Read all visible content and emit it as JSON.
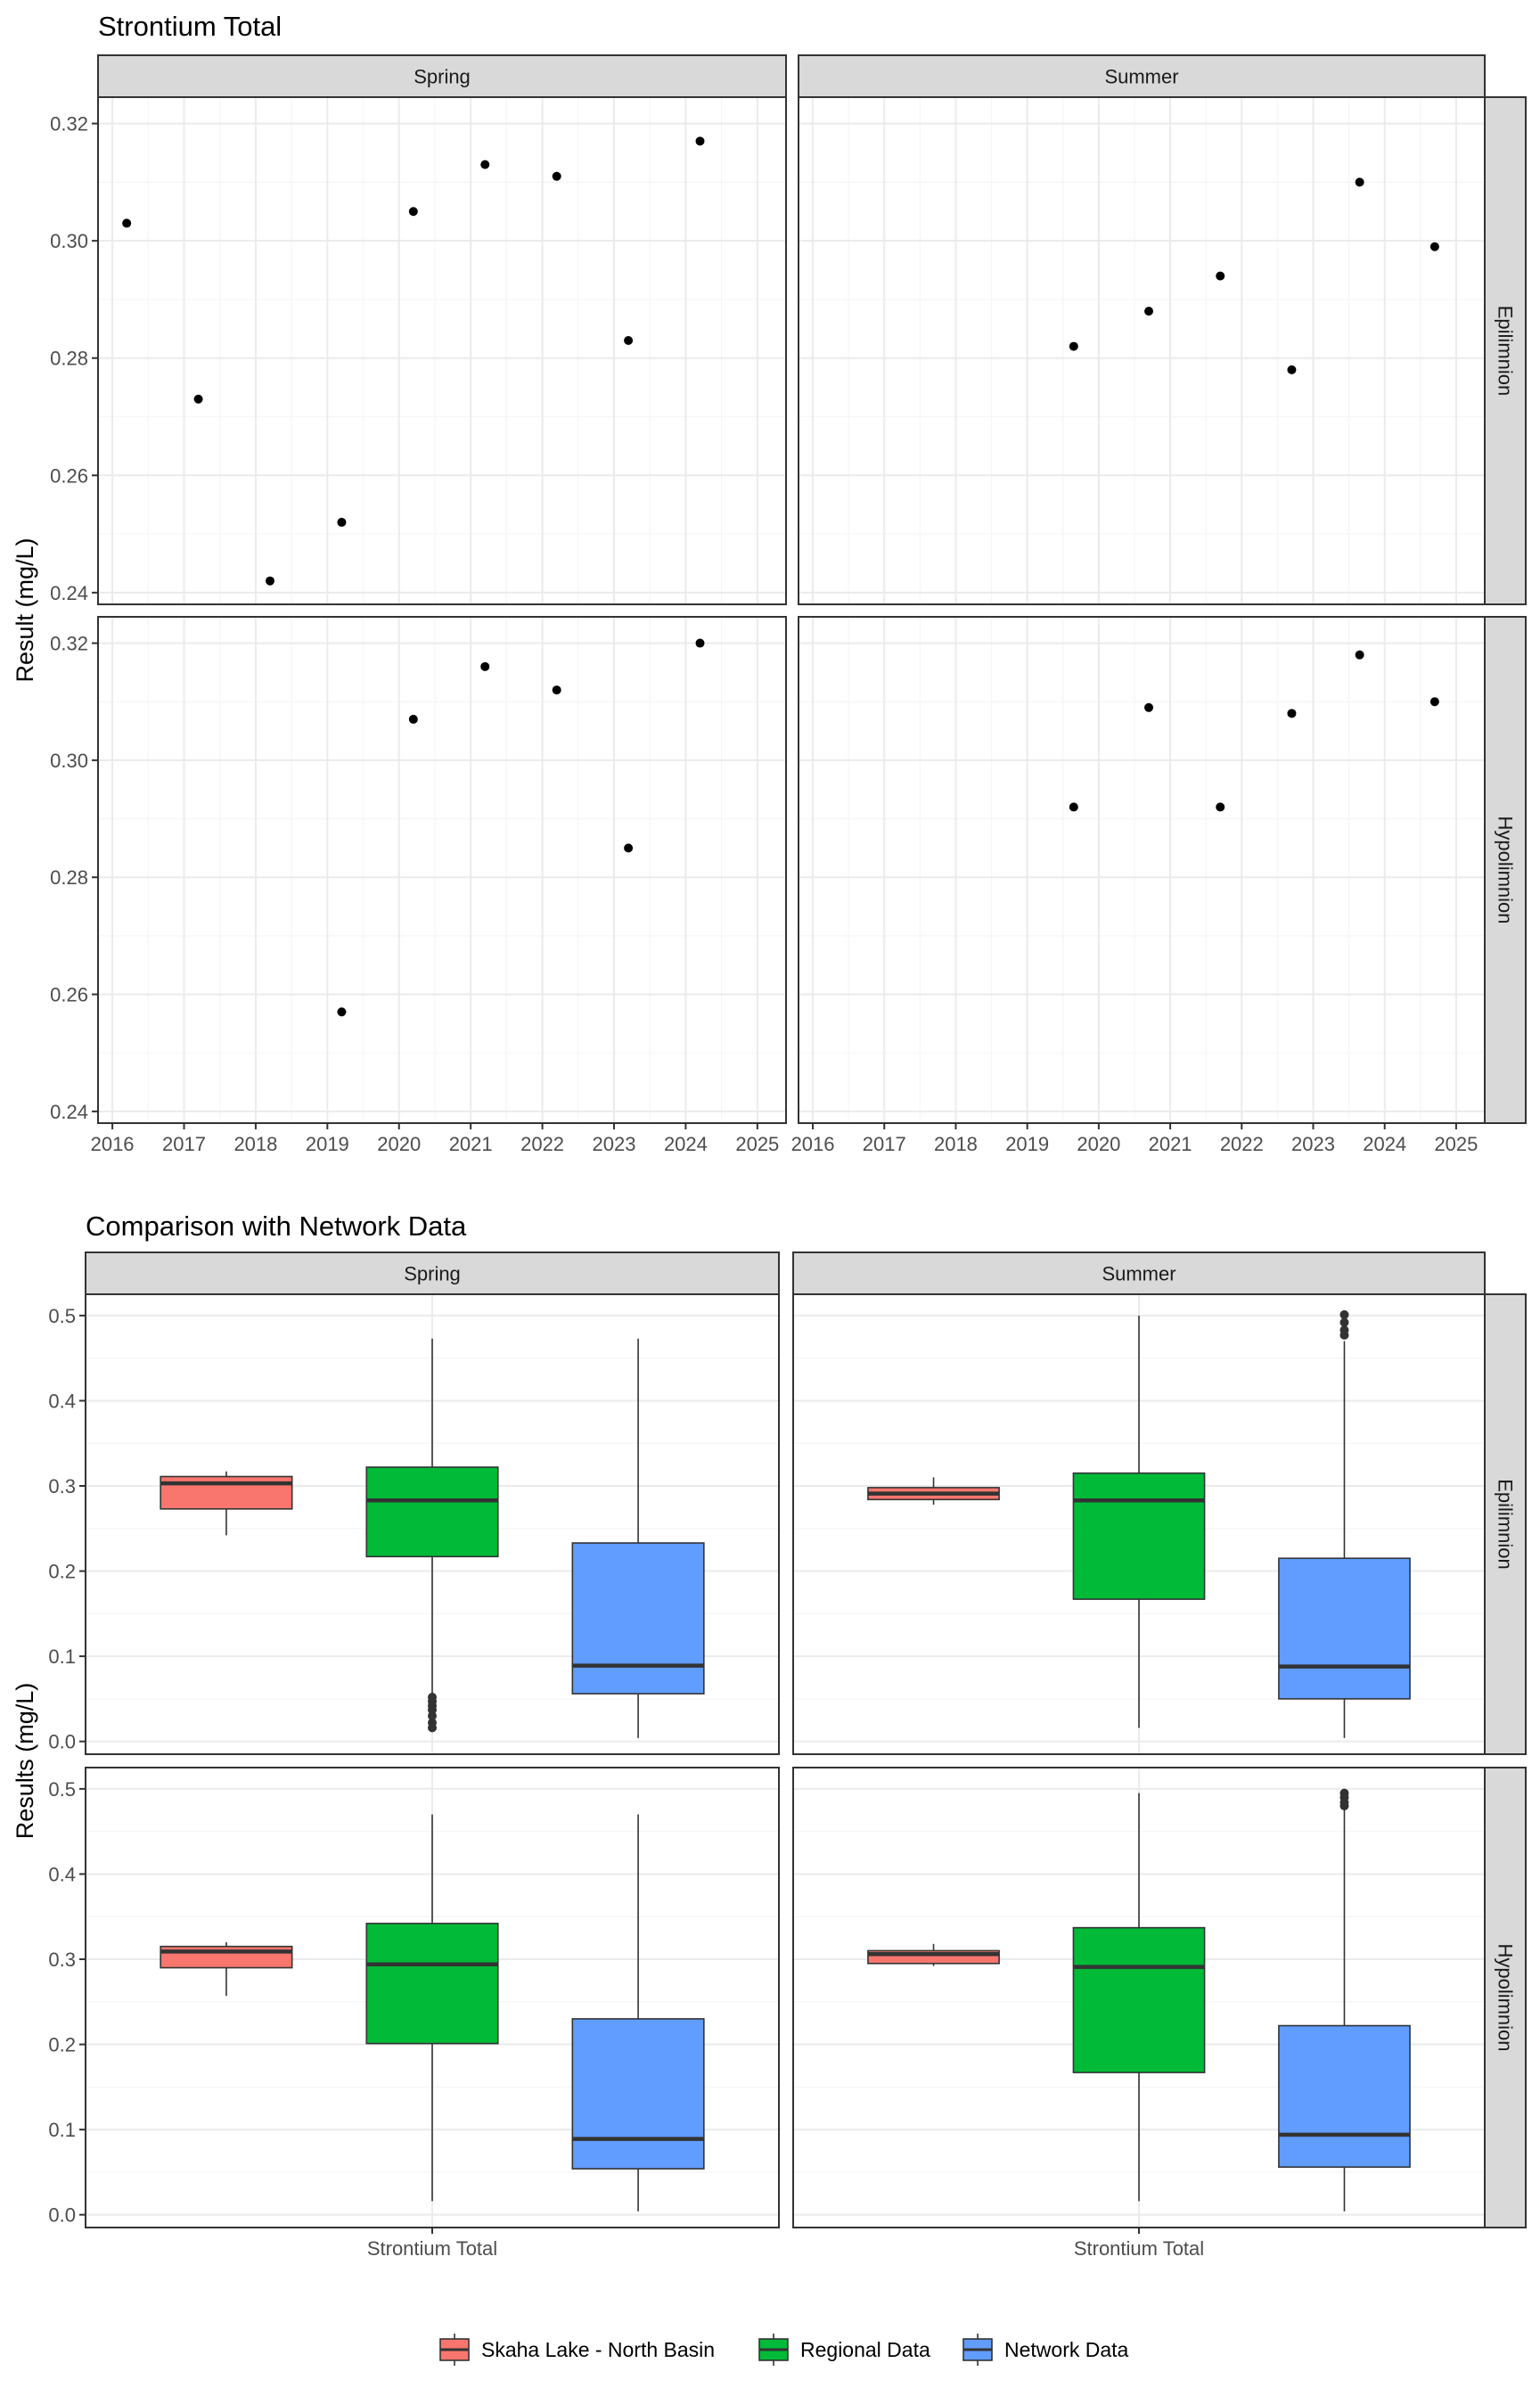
{
  "colors": {
    "panel_border": "#333333",
    "strip_fill": "#d9d9d9",
    "grid_major": "#ebebeb",
    "grid_minor": "#f5f5f5",
    "point": "#000000",
    "skaha": "#f8766d",
    "regional": "#00ba38",
    "network": "#619cff",
    "box_line": "#333333"
  },
  "chart_data": [
    {
      "type": "scatter",
      "title": "Strontium Total",
      "ylabel": "Result (mg/L)",
      "xlabel": "",
      "xlim": [
        2015.8,
        2025.4
      ],
      "ylim": [
        0.238,
        0.3245
      ],
      "x_ticks": [
        2016,
        2017,
        2018,
        2019,
        2020,
        2021,
        2022,
        2023,
        2024,
        2025
      ],
      "x_tick_labels": [
        "2016",
        "2017",
        "2018",
        "2019",
        "2020",
        "2021",
        "2022",
        "2023",
        "2024",
        "2025"
      ],
      "y_ticks": [
        0.24,
        0.26,
        0.28,
        0.3,
        0.32
      ],
      "y_tick_labels": [
        "0.24",
        "0.26",
        "0.28",
        "0.30",
        "0.32"
      ],
      "grid": true,
      "col_facets": [
        "Spring",
        "Summer"
      ],
      "row_facets": [
        "Epilimnion",
        "Hypolimnion"
      ],
      "panels": [
        {
          "col": 0,
          "row": 0,
          "points": [
            {
              "x": 2016.2,
              "y": 0.303
            },
            {
              "x": 2017.2,
              "y": 0.273
            },
            {
              "x": 2018.2,
              "y": 0.242
            },
            {
              "x": 2019.2,
              "y": 0.252
            },
            {
              "x": 2020.2,
              "y": 0.305
            },
            {
              "x": 2021.2,
              "y": 0.313
            },
            {
              "x": 2022.2,
              "y": 0.311
            },
            {
              "x": 2023.2,
              "y": 0.283
            },
            {
              "x": 2024.2,
              "y": 0.317
            }
          ]
        },
        {
          "col": 1,
          "row": 0,
          "points": [
            {
              "x": 2019.65,
              "y": 0.282
            },
            {
              "x": 2020.7,
              "y": 0.288
            },
            {
              "x": 2021.7,
              "y": 0.294
            },
            {
              "x": 2022.7,
              "y": 0.278
            },
            {
              "x": 2023.65,
              "y": 0.31
            },
            {
              "x": 2024.7,
              "y": 0.299
            }
          ]
        },
        {
          "col": 0,
          "row": 1,
          "points": [
            {
              "x": 2019.2,
              "y": 0.257
            },
            {
              "x": 2020.2,
              "y": 0.307
            },
            {
              "x": 2021.2,
              "y": 0.316
            },
            {
              "x": 2022.2,
              "y": 0.312
            },
            {
              "x": 2023.2,
              "y": 0.285
            },
            {
              "x": 2024.2,
              "y": 0.32
            }
          ]
        },
        {
          "col": 1,
          "row": 1,
          "points": [
            {
              "x": 2019.65,
              "y": 0.292
            },
            {
              "x": 2020.7,
              "y": 0.309
            },
            {
              "x": 2021.7,
              "y": 0.292
            },
            {
              "x": 2022.7,
              "y": 0.308
            },
            {
              "x": 2023.65,
              "y": 0.318
            },
            {
              "x": 2024.7,
              "y": 0.31
            }
          ]
        }
      ]
    },
    {
      "type": "box",
      "title": "Comparison with Network Data",
      "ylabel": "Results (mg/L)",
      "xlabel": "",
      "categories": [
        "Strontium Total"
      ],
      "ylim": [
        -0.015,
        0.525
      ],
      "y_ticks": [
        0.0,
        0.1,
        0.2,
        0.3,
        0.4,
        0.5
      ],
      "y_tick_labels": [
        "0.0",
        "0.1",
        "0.2",
        "0.3",
        "0.4",
        "0.5"
      ],
      "grid": true,
      "col_facets": [
        "Spring",
        "Summer"
      ],
      "row_facets": [
        "Epilimnion",
        "Hypolimnion"
      ],
      "legend": {
        "position": "bottom",
        "entries": [
          "Skaha Lake - North Basin",
          "Regional Data",
          "Network Data"
        ]
      },
      "panels": [
        {
          "col": 0,
          "row": 0,
          "boxes": [
            {
              "series": "Skaha Lake - North Basin",
              "min": 0.242,
              "q1": 0.273,
              "median": 0.303,
              "q3": 0.311,
              "max": 0.317,
              "outliers": []
            },
            {
              "series": "Regional Data",
              "min": 0.055,
              "q1": 0.217,
              "median": 0.283,
              "q3": 0.322,
              "max": 0.473,
              "outliers": [
                0.052,
                0.047,
                0.042,
                0.037,
                0.03,
                0.022,
                0.016
              ]
            },
            {
              "series": "Network Data",
              "min": 0.004,
              "q1": 0.056,
              "median": 0.089,
              "q3": 0.233,
              "max": 0.473,
              "outliers": []
            }
          ]
        },
        {
          "col": 1,
          "row": 0,
          "boxes": [
            {
              "series": "Skaha Lake - North Basin",
              "min": 0.278,
              "q1": 0.284,
              "median": 0.291,
              "q3": 0.298,
              "max": 0.31,
              "outliers": []
            },
            {
              "series": "Regional Data",
              "min": 0.016,
              "q1": 0.167,
              "median": 0.283,
              "q3": 0.315,
              "max": 0.5,
              "outliers": []
            },
            {
              "series": "Network Data",
              "min": 0.004,
              "q1": 0.05,
              "median": 0.088,
              "q3": 0.215,
              "max": 0.47,
              "outliers": [
                0.501,
                0.492,
                0.483,
                0.477
              ]
            }
          ]
        },
        {
          "col": 0,
          "row": 1,
          "boxes": [
            {
              "series": "Skaha Lake - North Basin",
              "min": 0.257,
              "q1": 0.29,
              "median": 0.309,
              "q3": 0.315,
              "max": 0.32,
              "outliers": []
            },
            {
              "series": "Regional Data",
              "min": 0.016,
              "q1": 0.201,
              "median": 0.294,
              "q3": 0.342,
              "max": 0.47,
              "outliers": []
            },
            {
              "series": "Network Data",
              "min": 0.004,
              "q1": 0.054,
              "median": 0.089,
              "q3": 0.23,
              "max": 0.47,
              "outliers": []
            }
          ]
        },
        {
          "col": 1,
          "row": 1,
          "boxes": [
            {
              "series": "Skaha Lake - North Basin",
              "min": 0.292,
              "q1": 0.295,
              "median": 0.306,
              "q3": 0.31,
              "max": 0.318,
              "outliers": []
            },
            {
              "series": "Regional Data",
              "min": 0.016,
              "q1": 0.167,
              "median": 0.291,
              "q3": 0.337,
              "max": 0.495,
              "outliers": []
            },
            {
              "series": "Network Data",
              "min": 0.004,
              "q1": 0.056,
              "median": 0.094,
              "q3": 0.222,
              "max": 0.478,
              "outliers": [
                0.495,
                0.49,
                0.484,
                0.48
              ]
            }
          ]
        }
      ]
    }
  ]
}
